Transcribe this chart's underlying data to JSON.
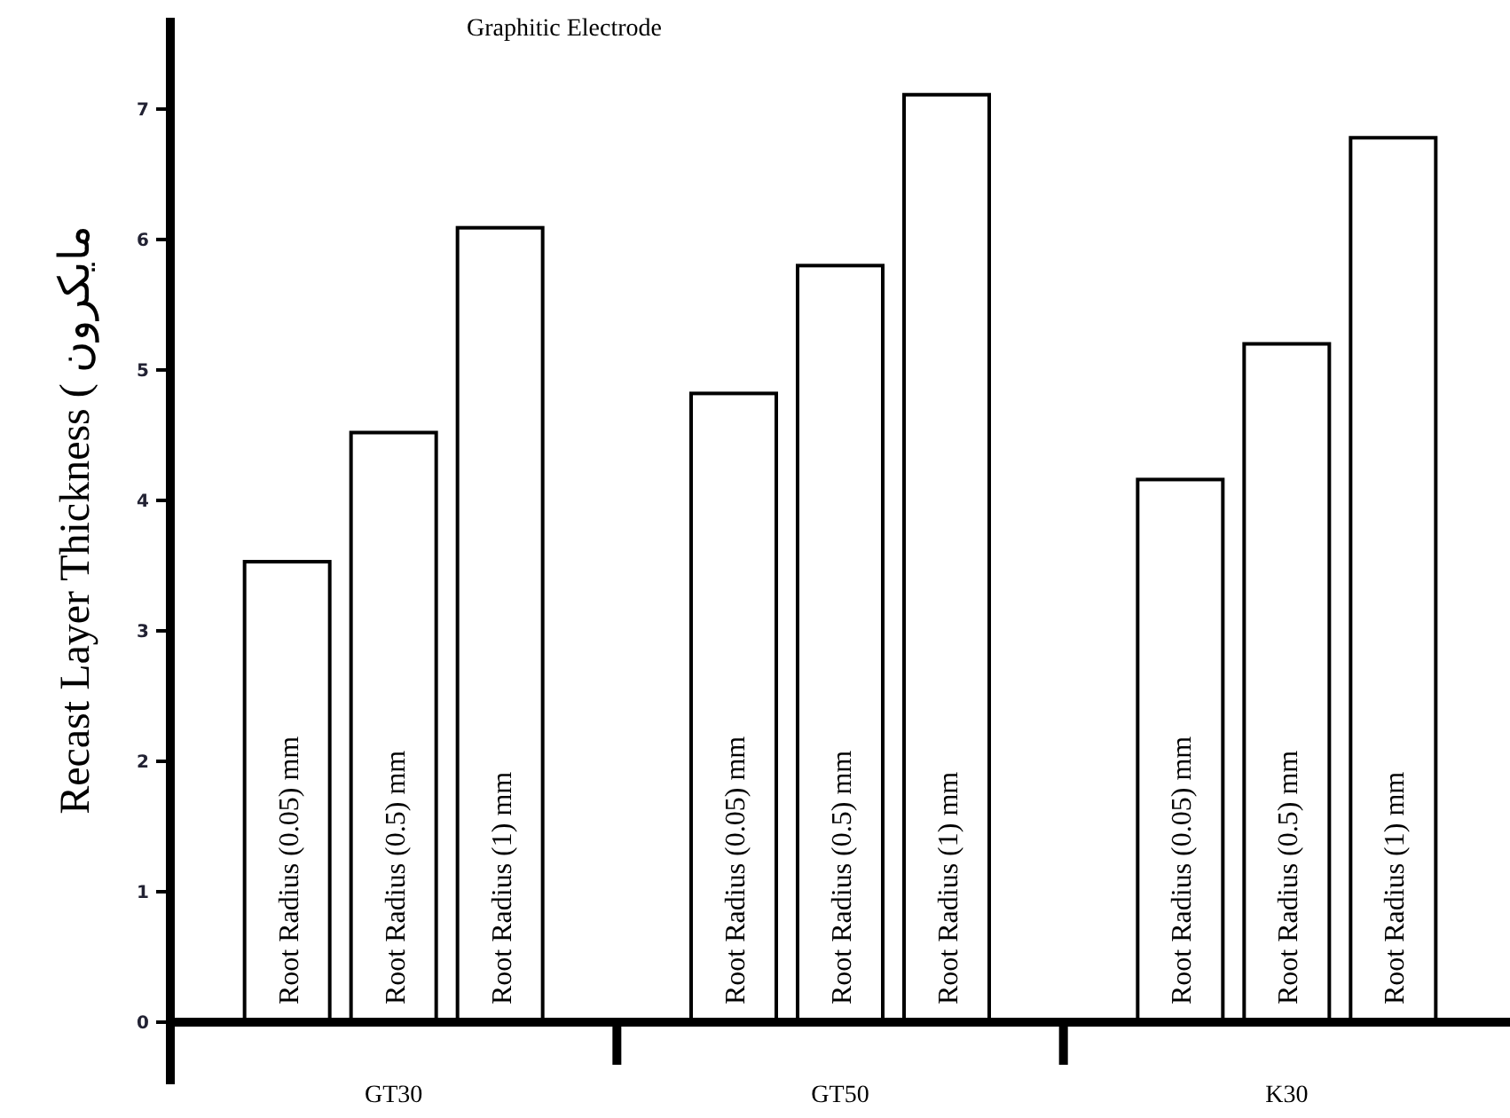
{
  "chart_data": {
    "type": "bar",
    "title": "Graphitic Electrode",
    "ylabel": "Recast Layer Thickness ( مایکرون",
    "categories": [
      "GT30",
      "GT50",
      "K30"
    ],
    "series": [
      {
        "name": "Root Radius (0.05) mm",
        "color": "#ffffff",
        "values": [
          3.53,
          4.82,
          4.16
        ]
      },
      {
        "name": "Root Radius (0.5) mm",
        "color": "#ffffff",
        "values": [
          4.52,
          5.8,
          5.2
        ]
      },
      {
        "name": "Root Radius (1) mm",
        "color": "#ffffff",
        "values": [
          6.09,
          7.11,
          6.78
        ]
      }
    ],
    "ylim": [
      0,
      7.7
    ],
    "yticks": [
      0,
      1,
      2,
      3,
      4,
      5,
      6,
      7
    ],
    "grid": false
  }
}
